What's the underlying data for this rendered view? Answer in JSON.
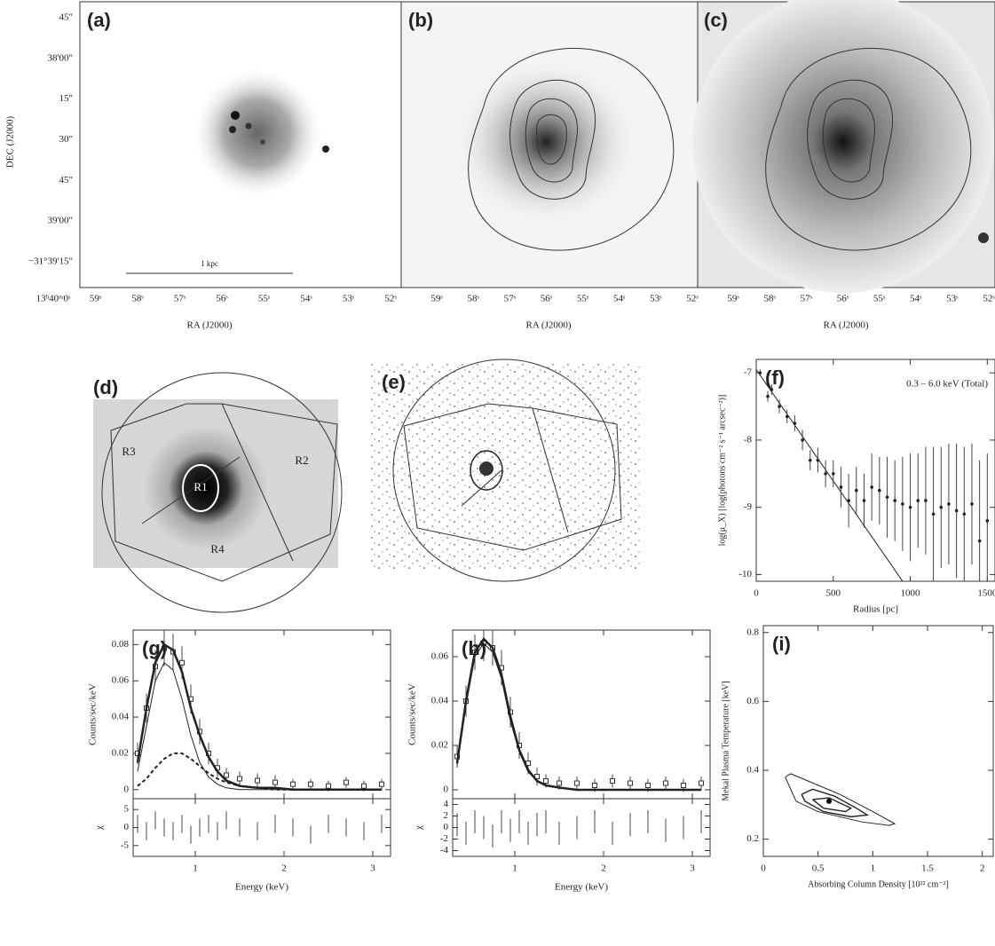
{
  "images": [
    {
      "label": "(a)",
      "yticklabels": [
        "45\"",
        "38'00\"",
        "15\"",
        "30\"",
        "45\"",
        "39'00\"",
        "−31°39'15\""
      ],
      "xticklabels": [
        "13ʰ40ᵐ0ˢ",
        "59ˢ",
        "58ˢ",
        "57ˢ",
        "56ˢ",
        "55ˢ",
        "54ˢ",
        "53ˢ",
        "52ˢ"
      ],
      "xlabel": "RA (J2000)",
      "ylabel": "DEC (J2000)",
      "scale_bar": "1 kpc"
    },
    {
      "label": "(b)",
      "xticklabels": [
        "59ˢ",
        "58ˢ",
        "57ˢ",
        "56ˢ",
        "55ˢ",
        "54ˢ",
        "53ˢ",
        "52ˢ"
      ],
      "xlabel": "RA (J2000)"
    },
    {
      "label": "(c)",
      "xticklabels": [
        "59ˢ",
        "58ˢ",
        "57ˢ",
        "56ˢ",
        "55ˢ",
        "54ˢ",
        "53ˢ",
        "52ˢ"
      ],
      "xlabel": "RA (J2000)"
    },
    {
      "label": "(d)",
      "regions": [
        "R1",
        "R2",
        "R3",
        "R4"
      ]
    },
    {
      "label": "(e)"
    }
  ],
  "chart_data": [
    {
      "type": "scatter",
      "label": "(f)",
      "annotation": "0.3 – 6.0 keV (Total)",
      "xlabel": "Radius [pc]",
      "ylabel": "log(μ_X) [log(photons cm⁻² s⁻¹ arcsec⁻²)]",
      "x": [
        25,
        75,
        100,
        150,
        200,
        250,
        300,
        350,
        400,
        450,
        500,
        550,
        600,
        650,
        700,
        750,
        800,
        850,
        900,
        950,
        1000,
        1050,
        1100,
        1150,
        1200,
        1250,
        1300,
        1350,
        1400,
        1450,
        1500
      ],
      "values": [
        -7.0,
        -7.35,
        -7.25,
        -7.5,
        -7.65,
        -7.75,
        -8.0,
        -8.3,
        -8.3,
        -8.5,
        -8.5,
        -8.7,
        -8.9,
        -8.75,
        -8.9,
        -8.7,
        -8.75,
        -8.85,
        -8.9,
        -8.95,
        -9.0,
        -8.9,
        -8.9,
        -9.1,
        -9.0,
        -8.95,
        -9.05,
        -9.1,
        -8.95,
        -9.5,
        -9.2
      ],
      "errors": [
        0.05,
        0.08,
        0.08,
        0.1,
        0.1,
        0.12,
        0.15,
        0.15,
        0.18,
        0.2,
        0.2,
        0.3,
        0.4,
        0.35,
        0.4,
        0.5,
        0.5,
        0.6,
        0.6,
        0.7,
        0.8,
        0.7,
        0.8,
        1.0,
        0.9,
        0.9,
        1.0,
        1.0,
        0.9,
        1.2,
        1.0
      ],
      "fit": {
        "x": [
          0,
          950
        ],
        "values": [
          -6.95,
          -10.1
        ]
      },
      "xlim": [
        0,
        1550
      ],
      "ylim": [
        -10.1,
        -6.8
      ],
      "xticks": [
        0,
        500,
        1000,
        1500
      ],
      "yticks": [
        -7,
        -8,
        -9,
        -10
      ],
      "color": "#222222"
    },
    {
      "type": "spectrum",
      "label": "(g)",
      "xlabel": "Energy (keV)",
      "ylabel": "Counts/sec/keV",
      "x": [
        0.35,
        0.45,
        0.55,
        0.65,
        0.75,
        0.85,
        0.95,
        1.05,
        1.15,
        1.25,
        1.35,
        1.5,
        1.7,
        1.9,
        2.1,
        2.3,
        2.5,
        2.7,
        2.9,
        3.1
      ],
      "series": [
        {
          "style": "points",
          "values": [
            0.02,
            0.045,
            0.068,
            0.078,
            0.076,
            0.07,
            0.05,
            0.032,
            0.02,
            0.012,
            0.008,
            0.006,
            0.005,
            0.004,
            0.003,
            0.003,
            0.002,
            0.004,
            0.002,
            0.003
          ],
          "errors": [
            0.006,
            0.008,
            0.009,
            0.01,
            0.01,
            0.009,
            0.008,
            0.007,
            0.006,
            0.005,
            0.004,
            0.004,
            0.004,
            0.004,
            0.003,
            0.003,
            0.003,
            0.003,
            0.003,
            0.003
          ]
        },
        {
          "style": "thick",
          "values": [
            0.015,
            0.045,
            0.07,
            0.08,
            0.077,
            0.065,
            0.045,
            0.03,
            0.018,
            0.01,
            0.005,
            0.002,
            0.001,
            0.001,
            0,
            0,
            0,
            0,
            0,
            0
          ]
        },
        {
          "style": "thin",
          "values": [
            0.01,
            0.035,
            0.06,
            0.07,
            0.066,
            0.05,
            0.03,
            0.015,
            0.007,
            0.003,
            0.001,
            0,
            0,
            0,
            0,
            0,
            0,
            0,
            0,
            0
          ]
        },
        {
          "style": "dashed",
          "values": [
            0.002,
            0.006,
            0.012,
            0.017,
            0.02,
            0.02,
            0.017,
            0.013,
            0.009,
            0.006,
            0.004,
            0.002,
            0.001,
            0,
            0,
            0,
            0,
            0,
            0,
            0
          ]
        }
      ],
      "xlim": [
        0.3,
        3.2
      ],
      "ylim": [
        -0.005,
        0.088
      ],
      "xticks": [
        1,
        2,
        3
      ],
      "yticks": [
        0,
        0.02,
        0.04,
        0.06,
        0.08
      ],
      "residuals": {
        "ylabel": "χ",
        "values": [
          1,
          -1,
          2,
          0,
          -1,
          1,
          -2,
          0,
          1,
          -1,
          2,
          0,
          -1,
          1,
          0,
          -2,
          1,
          0,
          -1,
          1
        ],
        "errors": [
          2.5,
          2.5,
          2.5,
          2.5,
          2.5,
          2.5,
          2.5,
          2.5,
          2.5,
          2.5,
          2.5,
          2.5,
          2.5,
          2.5,
          2.5,
          2.5,
          2.5,
          2.5,
          2.5,
          2.5
        ],
        "ylim": [
          -8,
          8
        ],
        "yticks": [
          -5,
          0,
          5
        ]
      }
    },
    {
      "type": "spectrum",
      "label": "(h)",
      "xlabel": "Energy (keV)",
      "ylabel": "Counts/sec/keV",
      "x": [
        0.35,
        0.45,
        0.55,
        0.65,
        0.75,
        0.85,
        0.95,
        1.05,
        1.15,
        1.25,
        1.35,
        1.5,
        1.7,
        1.9,
        2.1,
        2.3,
        2.5,
        2.7,
        2.9,
        3.1
      ],
      "series": [
        {
          "style": "points",
          "values": [
            0.015,
            0.04,
            0.062,
            0.066,
            0.064,
            0.055,
            0.035,
            0.02,
            0.012,
            0.006,
            0.004,
            0.003,
            0.003,
            0.002,
            0.004,
            0.003,
            0.002,
            0.003,
            0.002,
            0.003
          ],
          "errors": [
            0.005,
            0.007,
            0.008,
            0.008,
            0.008,
            0.008,
            0.007,
            0.006,
            0.005,
            0.004,
            0.003,
            0.003,
            0.003,
            0.003,
            0.003,
            0.003,
            0.003,
            0.003,
            0.003,
            0.003
          ]
        },
        {
          "style": "thick",
          "values": [
            0.012,
            0.04,
            0.062,
            0.068,
            0.064,
            0.052,
            0.033,
            0.018,
            0.009,
            0.004,
            0.002,
            0.001,
            0,
            0,
            0,
            0,
            0,
            0,
            0,
            0
          ]
        },
        {
          "style": "thin",
          "values": [
            0.011,
            0.038,
            0.06,
            0.066,
            0.062,
            0.05,
            0.031,
            0.017,
            0.008,
            0.004,
            0.002,
            0.001,
            0,
            0,
            0,
            0,
            0,
            0,
            0,
            0
          ]
        }
      ],
      "xlim": [
        0.3,
        3.2
      ],
      "ylim": [
        -0.004,
        0.072
      ],
      "xticks": [
        1,
        2,
        3
      ],
      "yticks": [
        0,
        0.02,
        0.04,
        0.06
      ],
      "residuals": {
        "ylabel": "χ",
        "values": [
          0.5,
          -1,
          1,
          0,
          -1.5,
          1,
          -0.5,
          1,
          -1,
          0.5,
          1,
          -1,
          0,
          1,
          -1,
          0.5,
          1,
          -0.5,
          0,
          1
        ],
        "errors": [
          2,
          2,
          2,
          2,
          2,
          2,
          2,
          2,
          2,
          2,
          2,
          2,
          2,
          2,
          2,
          2,
          2,
          2,
          2,
          2
        ],
        "ylim": [
          -5,
          5
        ],
        "yticks": [
          -4,
          -2,
          0,
          2,
          4
        ]
      }
    },
    {
      "type": "contour",
      "label": "(i)",
      "xlabel": "Absorbing Column Density [10²² cm⁻²]",
      "ylabel": "Mekal Plasma Temperature [keV]",
      "series": [
        {
          "x": [
            0.2,
            0.25,
            0.4,
            0.7,
            1.0,
            1.2,
            1.15,
            0.9,
            0.5,
            0.3,
            0.2
          ],
          "values": [
            0.38,
            0.39,
            0.37,
            0.33,
            0.28,
            0.245,
            0.24,
            0.25,
            0.28,
            0.31,
            0.38
          ]
        },
        {
          "x": [
            0.35,
            0.45,
            0.65,
            0.85,
            0.95,
            0.8,
            0.55,
            0.38,
            0.35
          ],
          "values": [
            0.33,
            0.345,
            0.325,
            0.29,
            0.27,
            0.265,
            0.28,
            0.31,
            0.33
          ]
        },
        {
          "x": [
            0.45,
            0.6,
            0.8,
            0.75,
            0.55,
            0.45
          ],
          "values": [
            0.315,
            0.32,
            0.29,
            0.28,
            0.29,
            0.315
          ]
        }
      ],
      "best_fit": {
        "x": 0.6,
        "value": 0.31
      },
      "xlim": [
        0,
        2.1
      ],
      "ylim": [
        0.15,
        0.82
      ],
      "xticks": [
        0,
        0.5,
        1,
        1.5,
        2
      ],
      "yticks": [
        0.2,
        0.4,
        0.6,
        0.8
      ]
    }
  ]
}
